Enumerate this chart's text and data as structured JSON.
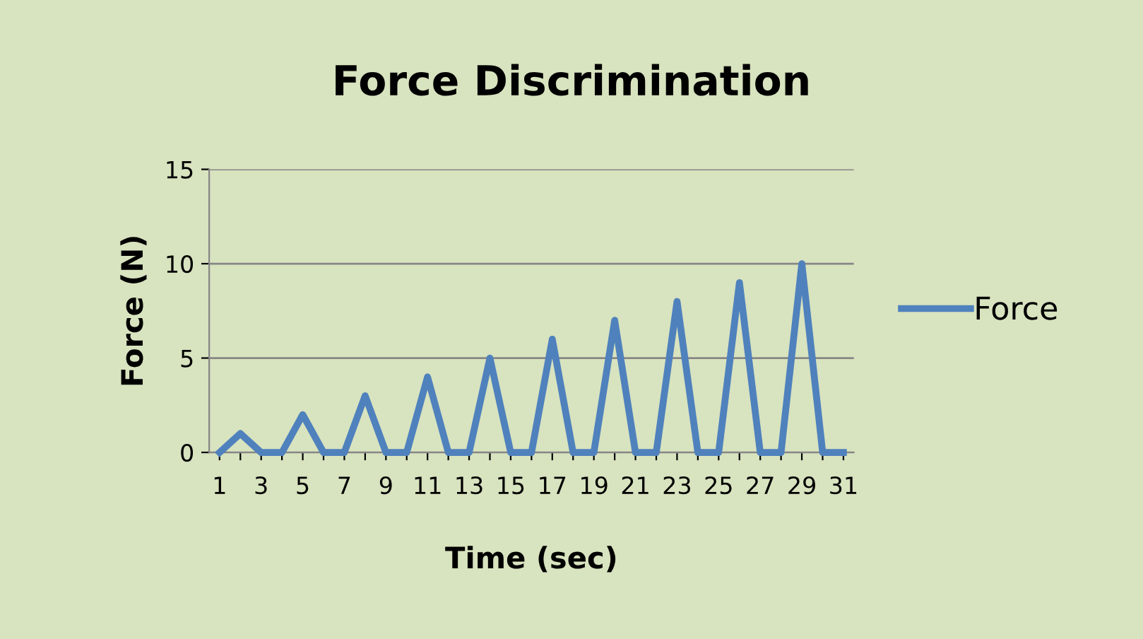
{
  "chart_data": {
    "type": "line",
    "title": "Force Discrimination",
    "xlabel": "Time (sec)",
    "ylabel": "Force (N)",
    "categories": [
      "1",
      null,
      "3",
      null,
      "5",
      null,
      "7",
      null,
      "9",
      null,
      "11",
      null,
      "13",
      null,
      "15",
      null,
      "17",
      null,
      "19",
      null,
      "21",
      null,
      "23",
      null,
      "25",
      null,
      "27",
      null,
      "29",
      null,
      "31"
    ],
    "series": [
      {
        "name": "Force",
        "color": "#4f81bd",
        "values": [
          0,
          1,
          0,
          0,
          2,
          0,
          0,
          3,
          0,
          0,
          4,
          0,
          0,
          5,
          0,
          0,
          6,
          0,
          0,
          7,
          0,
          0,
          8,
          0,
          0,
          9,
          0,
          0,
          10,
          0,
          0
        ]
      }
    ],
    "ylim": [
      0,
      15
    ],
    "yticks": [
      0,
      5,
      10,
      15
    ],
    "grid": "y",
    "legend": "right",
    "marker": "none",
    "line_style": "solid"
  }
}
